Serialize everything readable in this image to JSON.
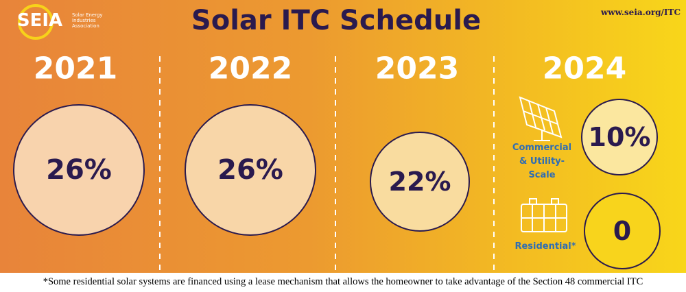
{
  "header": {
    "logo": "SEIA",
    "logo_tagline": "Solar Energy Industries Association",
    "title": "Solar ITC Schedule",
    "url": "www.seia.org/ITC"
  },
  "columns": [
    {
      "year": "2021",
      "rate": "26%"
    },
    {
      "year": "2022",
      "rate": "26%"
    },
    {
      "year": "2023",
      "rate": "22%"
    },
    {
      "year": "2024",
      "segments": [
        {
          "label": "Commercial & Utility-Scale",
          "rate": "10%"
        },
        {
          "label": "Residential*",
          "rate": "0"
        }
      ]
    }
  ],
  "footnote": "*Some residential solar systems are financed using a lease mechanism that allows the homeowner to take advantage of the Section 48 commercial ITC"
}
